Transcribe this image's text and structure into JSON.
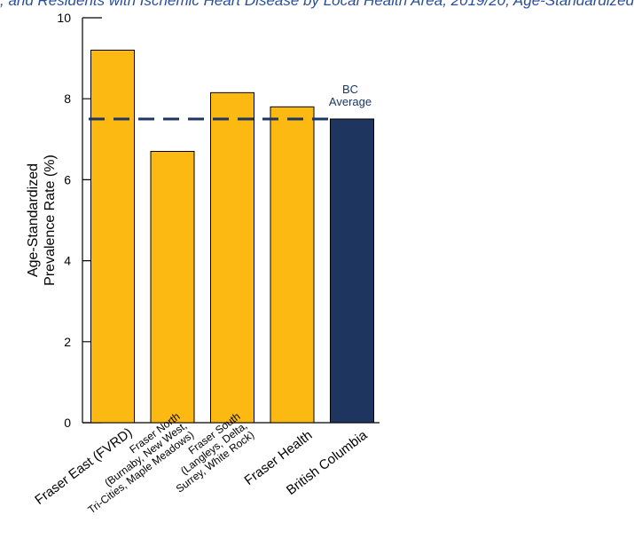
{
  "caption": ", and Residents with Ischemic Heart Disease by Local Health Area, 2019/20, Age-Standardized",
  "colors": {
    "bar": "#fbb912",
    "bc_bar": "#1e3560",
    "reference_line": "#1e3560",
    "axis": "#000000",
    "annotation": "#1e3560"
  },
  "chart_data": {
    "type": "bar",
    "ylabel": [
      "Age-Standardized",
      "Prevalence Rate (%)"
    ],
    "ylim": [
      0,
      10
    ],
    "yticks": [
      0,
      2,
      4,
      6,
      8,
      10
    ],
    "categories": [
      [
        "Fraser East (FVRD)"
      ],
      [
        "Fraser North",
        "(Burnaby, New West,",
        "Tri-Cities, Maple Meadows)"
      ],
      [
        "Fraser South",
        "(Langleys, Delta,",
        "Surrey, White Rock)"
      ],
      [
        "Fraser Health"
      ],
      [
        "British Columbia"
      ]
    ],
    "values": [
      9.2,
      6.7,
      8.15,
      7.8,
      7.5
    ],
    "highlight_index": 4,
    "reference_line": {
      "value": 7.5,
      "label": [
        "BC",
        "Average"
      ]
    },
    "grid": false
  }
}
